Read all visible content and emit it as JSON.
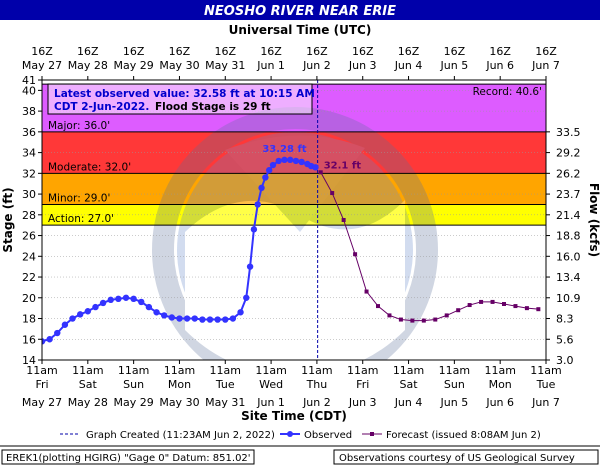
{
  "chart_data": {
    "type": "line",
    "title": "NEOSHO RIVER NEAR ERIE",
    "top_axis_title": "Universal Time (UTC)",
    "bottom_axis_title": "Site Time (CDT)",
    "ylabel": "Stage (ft)",
    "ylabel_right": "Flow (kcfs)",
    "ylim": [
      14,
      41
    ],
    "xlim": [
      "2022-05-27T11:00",
      "2022-06-07T11:00"
    ],
    "y_ticks": [
      14,
      16,
      18,
      20,
      22,
      24,
      26,
      28,
      30,
      32,
      34,
      36,
      38,
      40,
      41
    ],
    "flow_ticks": [
      {
        "stage": 14,
        "label": "3.0"
      },
      {
        "stage": 16,
        "label": "5.6"
      },
      {
        "stage": 18,
        "label": "8.3"
      },
      {
        "stage": 20,
        "label": "10.9"
      },
      {
        "stage": 22,
        "label": "13.4"
      },
      {
        "stage": 24,
        "label": "16.0"
      },
      {
        "stage": 26,
        "label": "18.8"
      },
      {
        "stage": 28,
        "label": "21.4"
      },
      {
        "stage": 30,
        "label": "23.7"
      },
      {
        "stage": 32,
        "label": "26.2"
      },
      {
        "stage": 34,
        "label": "29.2"
      },
      {
        "stage": 36,
        "label": "33.5"
      }
    ],
    "top_ticks": [
      {
        "l1": "16Z",
        "l2": "May 27"
      },
      {
        "l1": "16Z",
        "l2": "May 28"
      },
      {
        "l1": "16Z",
        "l2": "May 29"
      },
      {
        "l1": "16Z",
        "l2": "May 30"
      },
      {
        "l1": "16Z",
        "l2": "May 31"
      },
      {
        "l1": "16Z",
        "l2": "Jun 1"
      },
      {
        "l1": "16Z",
        "l2": "Jun 2"
      },
      {
        "l1": "16Z",
        "l2": "Jun 3"
      },
      {
        "l1": "16Z",
        "l2": "Jun 4"
      },
      {
        "l1": "16Z",
        "l2": "Jun 5"
      },
      {
        "l1": "16Z",
        "l2": "Jun 6"
      },
      {
        "l1": "16Z",
        "l2": "Jun 7"
      }
    ],
    "bottom_ticks": [
      {
        "l1": "11am",
        "l2": "Fri",
        "l3": "May 27"
      },
      {
        "l1": "11am",
        "l2": "Sat",
        "l3": "May 28"
      },
      {
        "l1": "11am",
        "l2": "Sun",
        "l3": "May 29"
      },
      {
        "l1": "11am",
        "l2": "Mon",
        "l3": "May 30"
      },
      {
        "l1": "11am",
        "l2": "Tue",
        "l3": "May 31"
      },
      {
        "l1": "11am",
        "l2": "Wed",
        "l3": "Jun 1"
      },
      {
        "l1": "11am",
        "l2": "Thu",
        "l3": "Jun 2"
      },
      {
        "l1": "11am",
        "l2": "Fri",
        "l3": "Jun 3"
      },
      {
        "l1": "11am",
        "l2": "Sat",
        "l3": "Jun 4"
      },
      {
        "l1": "11am",
        "l2": "Sun",
        "l3": "Jun 5"
      },
      {
        "l1": "11am",
        "l2": "Mon",
        "l3": "Jun 6"
      },
      {
        "l1": "11am",
        "l2": "Tue",
        "l3": "Jun 7"
      }
    ],
    "flood_categories": [
      {
        "name": "Action",
        "label": "Action: 27.0'",
        "from": 27,
        "to": 29,
        "color": "#ffff00"
      },
      {
        "name": "Minor",
        "label": "Minor: 29.0'",
        "from": 29,
        "to": 32,
        "color": "#ffa500"
      },
      {
        "name": "Moderate",
        "label": "Moderate: 32.0'",
        "from": 32,
        "to": 36,
        "color": "#ff3838"
      },
      {
        "name": "Major",
        "label": "Major: 36.0'",
        "from": 36,
        "to": 40.6,
        "color": "#dd5cff"
      }
    ],
    "record": {
      "value": 40.6,
      "label": "Record: 40.6'"
    },
    "observed_info": {
      "line1": "Latest observed value: 32.58 ft at 10:15 AM",
      "line2a": "CDT 2-Jun-2022.",
      "line2b": "Flood Stage is 29 ft"
    },
    "annotations": {
      "observed_peak": "33.28 ft",
      "forecast_start": "32.1 ft"
    },
    "graph_created_x": "2022-06-02T11:23",
    "legend": {
      "created": "Graph Created (11:23AM Jun 2, 2022)",
      "observed": "Observed",
      "forecast": "Forecast (issued 8:08AM Jun 2)"
    },
    "footer_left": "EREK1(plotting HGIRG) \"Gage 0\" Datum: 851.02'",
    "footer_right": "Observations courtesy of US Geological Survey",
    "colors": {
      "observed": "#3333ff",
      "forecast": "#660066",
      "title_bg": "#0000aa"
    },
    "series": [
      {
        "name": "Observed",
        "points": [
          [
            "2022-05-27T11:00",
            15.8
          ],
          [
            "2022-05-27T15:00",
            16.0
          ],
          [
            "2022-05-27T19:00",
            16.6
          ],
          [
            "2022-05-27T23:00",
            17.4
          ],
          [
            "2022-05-28T03:00",
            18.0
          ],
          [
            "2022-05-28T07:00",
            18.4
          ],
          [
            "2022-05-28T11:00",
            18.7
          ],
          [
            "2022-05-28T15:00",
            19.1
          ],
          [
            "2022-05-28T19:00",
            19.5
          ],
          [
            "2022-05-28T23:00",
            19.8
          ],
          [
            "2022-05-29T03:00",
            19.9
          ],
          [
            "2022-05-29T07:00",
            20.0
          ],
          [
            "2022-05-29T11:00",
            19.9
          ],
          [
            "2022-05-29T15:00",
            19.6
          ],
          [
            "2022-05-29T19:00",
            19.1
          ],
          [
            "2022-05-29T23:00",
            18.6
          ],
          [
            "2022-05-30T03:00",
            18.3
          ],
          [
            "2022-05-30T07:00",
            18.1
          ],
          [
            "2022-05-30T11:00",
            18.0
          ],
          [
            "2022-05-30T15:00",
            18.0
          ],
          [
            "2022-05-30T19:00",
            18.0
          ],
          [
            "2022-05-30T23:00",
            17.9
          ],
          [
            "2022-05-31T03:00",
            17.9
          ],
          [
            "2022-05-31T07:00",
            17.9
          ],
          [
            "2022-05-31T11:00",
            17.9
          ],
          [
            "2022-05-31T15:00",
            18.0
          ],
          [
            "2022-05-31T19:00",
            18.6
          ],
          [
            "2022-05-31T22:00",
            20.0
          ],
          [
            "2022-06-01T00:00",
            23.0
          ],
          [
            "2022-06-01T02:00",
            26.6
          ],
          [
            "2022-06-01T04:00",
            29.0
          ],
          [
            "2022-06-01T06:00",
            30.6
          ],
          [
            "2022-06-01T08:00",
            31.6
          ],
          [
            "2022-06-01T10:00",
            32.3
          ],
          [
            "2022-06-01T12:00",
            32.8
          ],
          [
            "2022-06-01T15:00",
            33.2
          ],
          [
            "2022-06-01T18:00",
            33.3
          ],
          [
            "2022-06-01T21:00",
            33.3
          ],
          [
            "2022-06-02T00:00",
            33.2
          ],
          [
            "2022-06-02T03:00",
            33.1
          ],
          [
            "2022-06-02T06:00",
            32.9
          ],
          [
            "2022-06-02T08:00",
            32.7
          ],
          [
            "2022-06-02T10:15",
            32.58
          ]
        ]
      },
      {
        "name": "Forecast",
        "points": [
          [
            "2022-06-02T13:00",
            32.1
          ],
          [
            "2022-06-02T19:00",
            30.1
          ],
          [
            "2022-06-03T01:00",
            27.5
          ],
          [
            "2022-06-03T07:00",
            24.2
          ],
          [
            "2022-06-03T13:00",
            20.6
          ],
          [
            "2022-06-03T19:00",
            19.2
          ],
          [
            "2022-06-04T01:00",
            18.3
          ],
          [
            "2022-06-04T07:00",
            17.9
          ],
          [
            "2022-06-04T13:00",
            17.8
          ],
          [
            "2022-06-04T19:00",
            17.8
          ],
          [
            "2022-06-05T01:00",
            17.9
          ],
          [
            "2022-06-05T07:00",
            18.3
          ],
          [
            "2022-06-05T13:00",
            18.8
          ],
          [
            "2022-06-05T19:00",
            19.3
          ],
          [
            "2022-06-06T01:00",
            19.6
          ],
          [
            "2022-06-06T07:00",
            19.6
          ],
          [
            "2022-06-06T13:00",
            19.4
          ],
          [
            "2022-06-06T19:00",
            19.2
          ],
          [
            "2022-06-07T01:00",
            19.0
          ],
          [
            "2022-06-07T07:00",
            18.9
          ]
        ]
      }
    ]
  }
}
